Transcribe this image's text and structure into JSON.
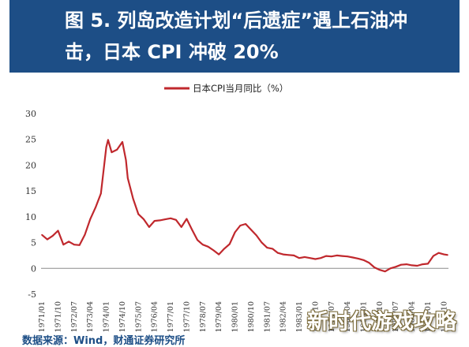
{
  "header": {
    "title_line1": "图 5. 列岛改造计划“后遗症”遇上石油冲",
    "title_line2": "击，日本 CPI 冲破 20%"
  },
  "footer": {
    "source": "数据来源：Wind，财通证券研究所"
  },
  "watermark": "新时代游戏攻略",
  "chart_data": {
    "type": "line",
    "legend": [
      "日本CPI当月同比（%）"
    ],
    "legend_position": "top",
    "series": [
      {
        "name": "日本CPI当月同比（%）",
        "color": "#c0282d",
        "points": [
          [
            "1971-01",
            6.5
          ],
          [
            "1971-04",
            5.6
          ],
          [
            "1971-07",
            6.3
          ],
          [
            "1971-10",
            7.3
          ],
          [
            "1972-01",
            4.6
          ],
          [
            "1972-04",
            5.2
          ],
          [
            "1972-07",
            4.6
          ],
          [
            "1972-10",
            4.5
          ],
          [
            "1973-01",
            6.5
          ],
          [
            "1973-04",
            9.5
          ],
          [
            "1973-07",
            11.8
          ],
          [
            "1973-10",
            14.5
          ],
          [
            "1974-01",
            23.5
          ],
          [
            "1974-02",
            24.9
          ],
          [
            "1974-04",
            22.5
          ],
          [
            "1974-07",
            23.0
          ],
          [
            "1974-10",
            24.5
          ],
          [
            "1974-12",
            21.0
          ],
          [
            "1975-01",
            17.5
          ],
          [
            "1975-04",
            13.5
          ],
          [
            "1975-07",
            10.5
          ],
          [
            "1975-10",
            9.5
          ],
          [
            "1976-01",
            8.0
          ],
          [
            "1976-04",
            9.2
          ],
          [
            "1976-07",
            9.3
          ],
          [
            "1976-10",
            9.5
          ],
          [
            "1977-01",
            9.7
          ],
          [
            "1977-04",
            9.4
          ],
          [
            "1977-07",
            8.0
          ],
          [
            "1977-10",
            9.6
          ],
          [
            "1978-01",
            7.5
          ],
          [
            "1978-04",
            5.5
          ],
          [
            "1978-07",
            4.6
          ],
          [
            "1978-10",
            4.2
          ],
          [
            "1979-01",
            3.5
          ],
          [
            "1979-04",
            2.7
          ],
          [
            "1979-07",
            3.8
          ],
          [
            "1979-10",
            4.7
          ],
          [
            "1980-01",
            7.0
          ],
          [
            "1980-04",
            8.3
          ],
          [
            "1980-07",
            8.6
          ],
          [
            "1980-10",
            7.5
          ],
          [
            "1981-01",
            6.4
          ],
          [
            "1981-04",
            5.0
          ],
          [
            "1981-07",
            4.0
          ],
          [
            "1981-10",
            3.8
          ],
          [
            "1982-01",
            3.0
          ],
          [
            "1982-04",
            2.7
          ],
          [
            "1982-07",
            2.6
          ],
          [
            "1982-10",
            2.5
          ],
          [
            "1983-01",
            2.0
          ],
          [
            "1983-04",
            2.2
          ],
          [
            "1983-07",
            2.0
          ],
          [
            "1983-10",
            1.8
          ],
          [
            "1984-01",
            2.0
          ],
          [
            "1984-04",
            2.4
          ],
          [
            "1984-07",
            2.3
          ],
          [
            "1984-10",
            2.5
          ],
          [
            "1985-01",
            2.4
          ],
          [
            "1985-04",
            2.3
          ],
          [
            "1985-07",
            2.1
          ],
          [
            "1985-10",
            1.9
          ],
          [
            "1986-01",
            1.6
          ],
          [
            "1986-04",
            1.1
          ],
          [
            "1986-07",
            0.2
          ],
          [
            "1986-10",
            -0.3
          ],
          [
            "1987-01",
            -0.6
          ],
          [
            "1987-04",
            0.0
          ],
          [
            "1987-07",
            0.3
          ],
          [
            "1987-10",
            0.7
          ],
          [
            "1988-01",
            0.8
          ],
          [
            "1988-04",
            0.6
          ],
          [
            "1988-07",
            0.5
          ],
          [
            "1988-10",
            0.8
          ],
          [
            "1989-01",
            0.9
          ],
          [
            "1989-04",
            2.4
          ],
          [
            "1989-07",
            3.0
          ],
          [
            "1989-10",
            2.7
          ],
          [
            "1989-12",
            2.6
          ]
        ]
      }
    ],
    "x_tick_labels": [
      "1971/01",
      "1971/10",
      "1972/07",
      "1973/04",
      "1974/01",
      "1974/10",
      "1975/07",
      "1976/04",
      "1977/01",
      "1977/10",
      "1978/07",
      "1979/04",
      "1980/01",
      "1980/10",
      "1981/07",
      "1982/04",
      "1983/01",
      "1983/10",
      "1984/07",
      "1985/04",
      "1986/01",
      "1986/10",
      "1987/07",
      "1988/04",
      "1989/01",
      "1989/10"
    ],
    "y_ticks": [
      -5,
      0,
      5,
      10,
      15,
      20,
      25,
      30
    ],
    "ylim": [
      -5,
      30
    ],
    "xlim": [
      "1971-01",
      "1989-12"
    ],
    "grid": false,
    "xlabel": "",
    "ylabel": ""
  }
}
